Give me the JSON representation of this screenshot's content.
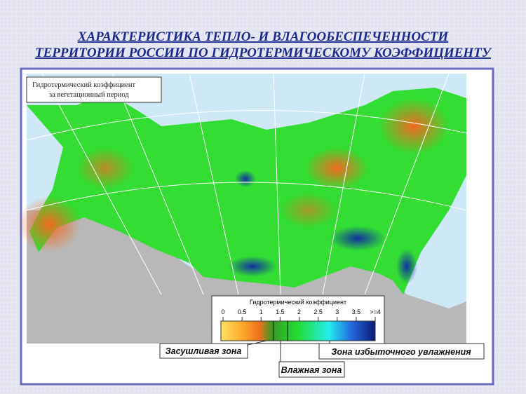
{
  "title": [
    "ХАРАКТЕРИСТИКА ТЕПЛО- И ВЛАГООБЕСПЕЧЕННОСТИ",
    "ТЕРРИТОРИИ РОССИИ ПО ГИДРОТЕРМИЧЕСКОМУ КОЭФФИЦИЕНТУ"
  ],
  "map": {
    "caption": [
      "Гидротермический коэффициент",
      "за вегетационный период"
    ]
  },
  "legend": {
    "title": "Гидротермический коэффициент",
    "ticks": [
      0,
      0.5,
      1,
      1.5,
      2,
      2.5,
      3,
      3.5,
      {
        "value": 4,
        "label": ">=4"
      }
    ],
    "zones": {
      "dry": "Засушливая зона",
      "wet": "Влажная зона",
      "excess": "Зона избыточного увлажнения"
    }
  }
}
